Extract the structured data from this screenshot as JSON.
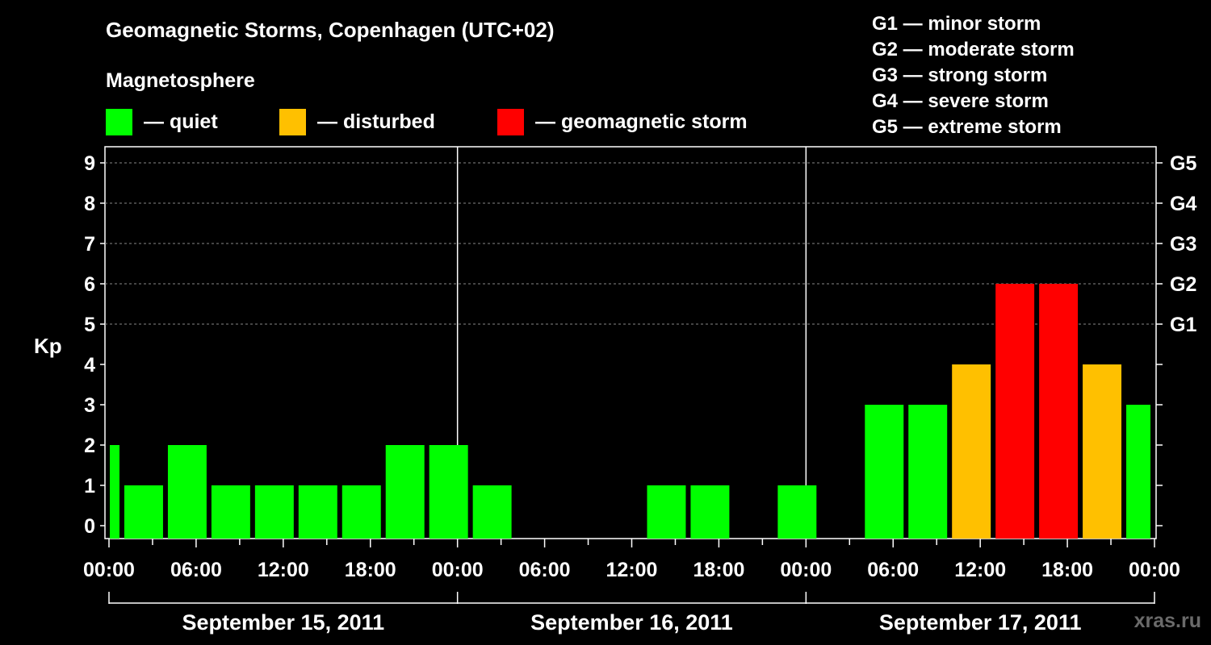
{
  "header": {
    "title": "Geomagnetic Storms, Copenhagen (UTC+02)",
    "magnetosphere_label": "Magnetosphere"
  },
  "legend": [
    {
      "label": "— quiet",
      "color": "#00ff00"
    },
    {
      "label": "— disturbed",
      "color": "#ffc000"
    },
    {
      "label": "— geomagnetic storm",
      "color": "#ff0000"
    }
  ],
  "storm_scale": [
    "G1 — minor storm",
    "G2 — moderate storm",
    "G3 — strong storm",
    "G4 — severe storm",
    "G5 — extreme storm"
  ],
  "watermark": "xras.ru",
  "chart_data": {
    "type": "bar",
    "ylabel": "Kp",
    "ylim": [
      0,
      9
    ],
    "y_ticks": [
      "0",
      "1",
      "2",
      "3",
      "4",
      "5",
      "6",
      "7",
      "8",
      "9"
    ],
    "right_axis_labels": [
      {
        "kp": 5,
        "label": "G1"
      },
      {
        "kp": 6,
        "label": "G2"
      },
      {
        "kp": 7,
        "label": "G3"
      },
      {
        "kp": 8,
        "label": "G4"
      },
      {
        "kp": 9,
        "label": "G5"
      }
    ],
    "x_tick_labels": [
      "00:00",
      "06:00",
      "12:00",
      "18:00",
      "00:00",
      "06:00",
      "12:00",
      "18:00",
      "00:00",
      "06:00",
      "12:00",
      "18:00",
      "00:00"
    ],
    "days": [
      "September 15, 2011",
      "September 16, 2011",
      "September 17, 2011"
    ],
    "grid": "horizontal dashed at Kp 5-9",
    "colors": {
      "quiet": "#00ff00",
      "disturbed": "#ffc000",
      "storm": "#ff0000"
    },
    "bars": [
      {
        "start_hour": 0,
        "end_hour": 1,
        "kp": 2
      },
      {
        "start_hour": 1,
        "end_hour": 4,
        "kp": 1
      },
      {
        "start_hour": 4,
        "end_hour": 7,
        "kp": 2
      },
      {
        "start_hour": 7,
        "end_hour": 10,
        "kp": 1
      },
      {
        "start_hour": 10,
        "end_hour": 13,
        "kp": 1
      },
      {
        "start_hour": 13,
        "end_hour": 16,
        "kp": 1
      },
      {
        "start_hour": 16,
        "end_hour": 19,
        "kp": 1
      },
      {
        "start_hour": 19,
        "end_hour": 22,
        "kp": 2
      },
      {
        "start_hour": 22,
        "end_hour": 25,
        "kp": 2
      },
      {
        "start_hour": 25,
        "end_hour": 28,
        "kp": 1
      },
      {
        "start_hour": 28,
        "end_hour": 31,
        "kp": 0
      },
      {
        "start_hour": 31,
        "end_hour": 34,
        "kp": 0
      },
      {
        "start_hour": 34,
        "end_hour": 37,
        "kp": 0
      },
      {
        "start_hour": 37,
        "end_hour": 40,
        "kp": 1
      },
      {
        "start_hour": 40,
        "end_hour": 43,
        "kp": 1
      },
      {
        "start_hour": 43,
        "end_hour": 46,
        "kp": 0
      },
      {
        "start_hour": 46,
        "end_hour": 49,
        "kp": 1
      },
      {
        "start_hour": 49,
        "end_hour": 52,
        "kp": 0
      },
      {
        "start_hour": 52,
        "end_hour": 55,
        "kp": 3
      },
      {
        "start_hour": 55,
        "end_hour": 58,
        "kp": 3
      },
      {
        "start_hour": 58,
        "end_hour": 61,
        "kp": 4
      },
      {
        "start_hour": 61,
        "end_hour": 64,
        "kp": 6
      },
      {
        "start_hour": 64,
        "end_hour": 67,
        "kp": 6
      },
      {
        "start_hour": 67,
        "end_hour": 70,
        "kp": 4
      },
      {
        "start_hour": 70,
        "end_hour": 72,
        "kp": 3
      }
    ]
  }
}
